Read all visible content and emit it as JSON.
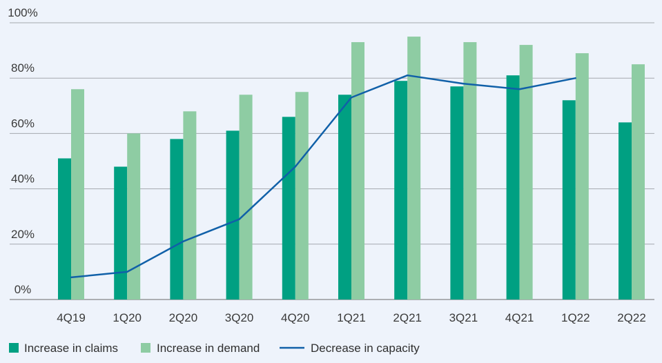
{
  "chart_data": {
    "type": "bar",
    "categories": [
      "4Q19",
      "1Q20",
      "2Q20",
      "3Q20",
      "4Q20",
      "1Q21",
      "2Q21",
      "3Q21",
      "4Q21",
      "1Q22",
      "2Q22"
    ],
    "series": [
      {
        "name": "Increase in claims",
        "type": "bar",
        "color": "#00a082",
        "values": [
          51,
          48,
          58,
          61,
          66,
          74,
          79,
          77,
          81,
          72,
          64
        ]
      },
      {
        "name": "Increase in demand",
        "type": "bar",
        "color": "#8ecca3",
        "values": [
          76,
          60,
          68,
          74,
          75,
          93,
          95,
          93,
          92,
          89,
          85
        ]
      },
      {
        "name": "Decrease in capacity",
        "type": "line",
        "color": "#1060a8",
        "values": [
          8,
          10,
          21,
          29,
          48,
          73,
          81,
          78,
          76,
          80,
          null
        ]
      }
    ],
    "yticks": [
      "0%",
      "20%",
      "40%",
      "60%",
      "80%",
      "100%"
    ],
    "ylim": [
      0,
      100
    ],
    "grid": true,
    "legend_position": "bottom-left",
    "title": "",
    "xlabel": "",
    "ylabel": ""
  }
}
